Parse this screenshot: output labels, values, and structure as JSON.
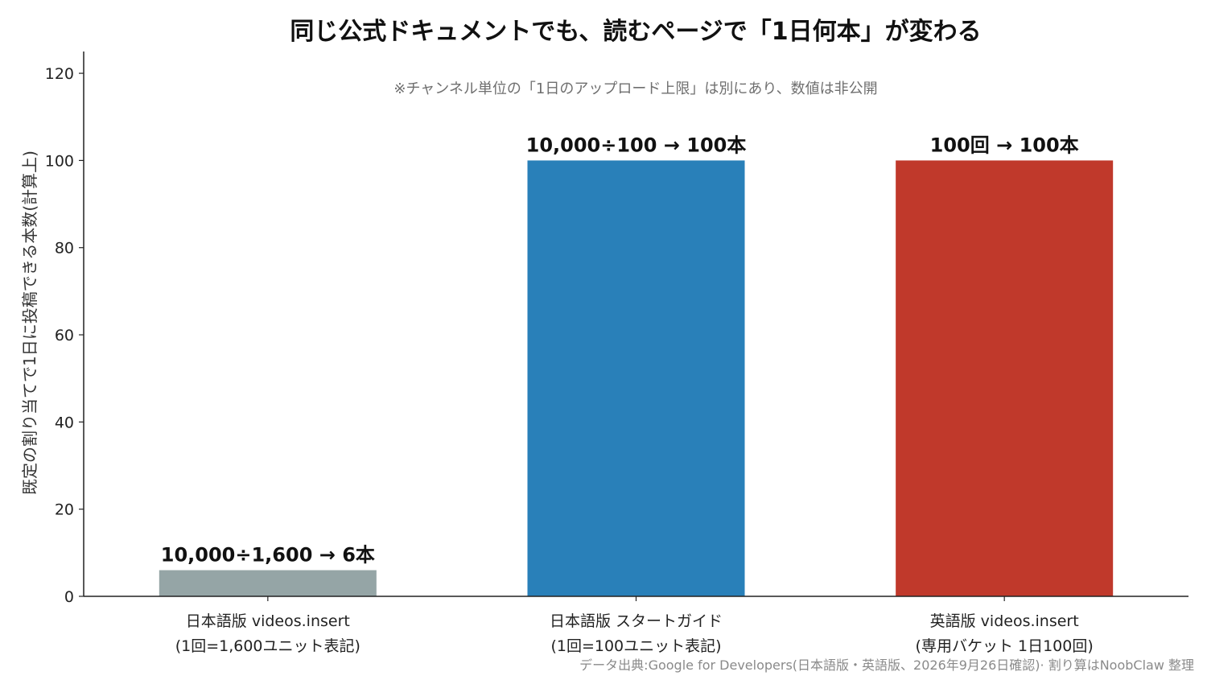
{
  "chart_data": {
    "type": "bar",
    "title": "同じ公式ドキュメントでも、読むページで「1日何本」が変わる",
    "subtitle": "※チャンネル単位の「1日のアップロード上限」は別にあり、数値は非公開",
    "ylabel": "既定の割り当てで1日に投稿できる本数(計算上)",
    "xlabel": "",
    "ylim": [
      0,
      125
    ],
    "yticks": [
      0,
      20,
      40,
      60,
      80,
      100,
      120
    ],
    "grid": false,
    "categories": [
      [
        "日本語版 videos.insert",
        "(1回=1,600ユニット表記)"
      ],
      [
        "日本語版 スタートガイド",
        "(1回=100ユニット表記)"
      ],
      [
        "英語版 videos.insert",
        "(専用バケット 1日100回)"
      ]
    ],
    "values": [
      6,
      100,
      100
    ],
    "colors": [
      "#95a5a6",
      "#2980b9",
      "#c0392b"
    ],
    "data_labels": [
      "10,000÷1,600 → 6本",
      "10,000÷100 → 100本",
      "100回 → 100本"
    ]
  },
  "footer": "データ出典:Google for Developers(日本語版・英語版、2026年9月26日確認)· 割り算はNoobClaw 整理"
}
